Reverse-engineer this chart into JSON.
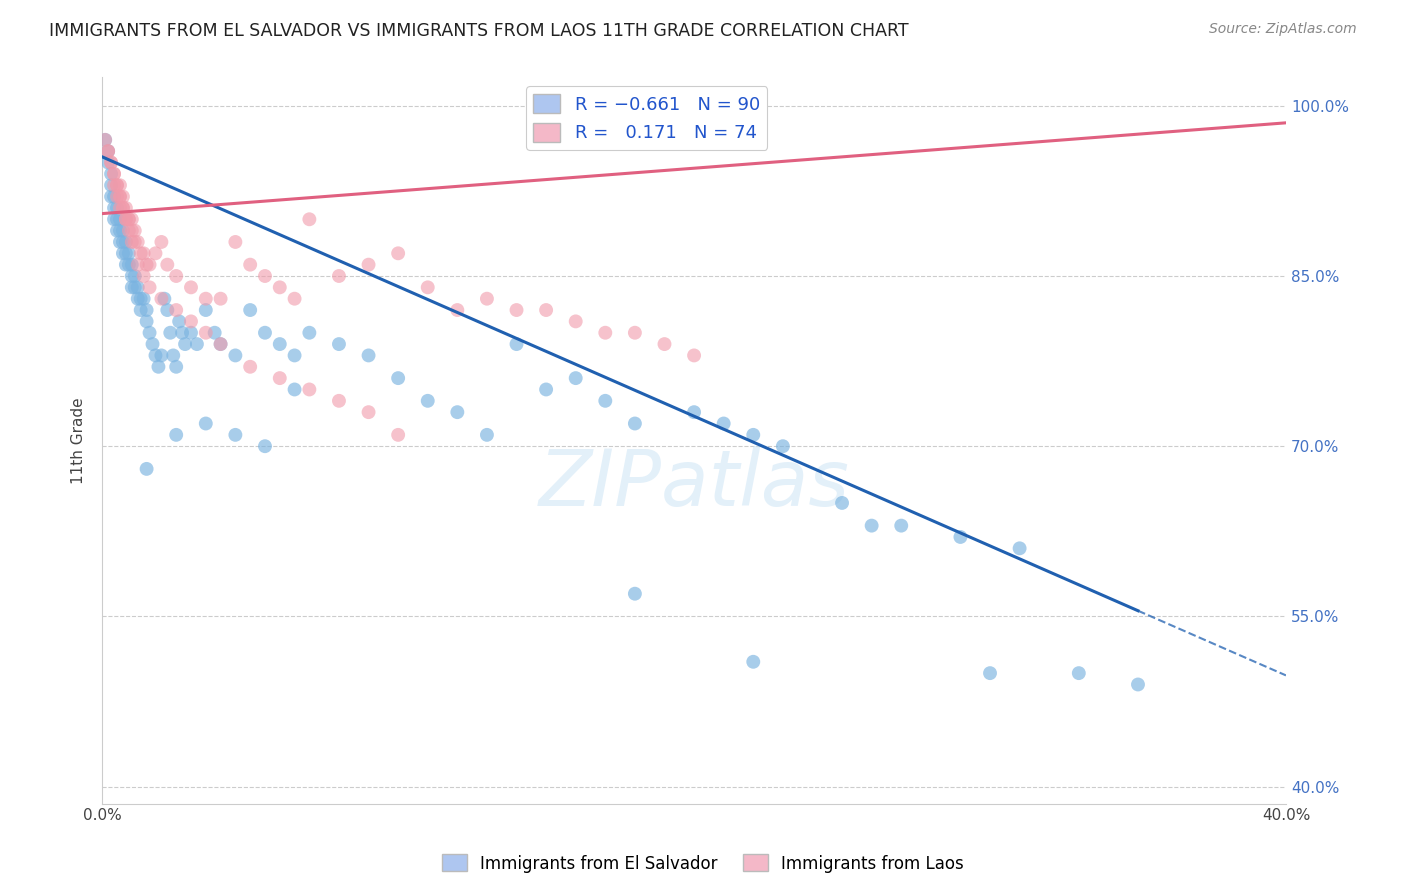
{
  "title": "IMMIGRANTS FROM EL SALVADOR VS IMMIGRANTS FROM LAOS 11TH GRADE CORRELATION CHART",
  "source": "Source: ZipAtlas.com",
  "ylabel": "11th Grade",
  "xlim": [
    0.0,
    0.4
  ],
  "ylim": [
    0.385,
    1.025
  ],
  "xtick_vals": [
    0.0,
    0.1,
    0.2,
    0.3,
    0.4
  ],
  "xtick_labels": [
    "0.0%",
    "",
    "",
    "",
    "40.0%"
  ],
  "ytick_labels_right": [
    "100.0%",
    "85.0%",
    "70.0%",
    "55.0%",
    "40.0%"
  ],
  "ytick_vals_right": [
    1.0,
    0.85,
    0.7,
    0.55,
    0.4
  ],
  "legend_label_blue": "Immigrants from El Salvador",
  "legend_label_pink": "Immigrants from Laos",
  "blue_fill_color": "#aec6f0",
  "pink_fill_color": "#f4b8c8",
  "blue_dot_color": "#7ab3e0",
  "pink_dot_color": "#f09aaa",
  "blue_line_color": "#2060b0",
  "pink_line_color": "#e06080",
  "watermark": "ZIPatlas",
  "blue_trend_x0": 0.0,
  "blue_trend_y0": 0.955,
  "blue_trend_x1": 0.35,
  "blue_trend_y1": 0.555,
  "blue_trend_dash_x1": 0.4,
  "blue_trend_dash_y1": 0.498,
  "pink_trend_x0": 0.0,
  "pink_trend_y0": 0.905,
  "pink_trend_x1": 0.4,
  "pink_trend_y1": 0.985,
  "blue_x": [
    0.001,
    0.002,
    0.002,
    0.003,
    0.003,
    0.003,
    0.004,
    0.004,
    0.004,
    0.005,
    0.005,
    0.005,
    0.006,
    0.006,
    0.006,
    0.007,
    0.007,
    0.007,
    0.008,
    0.008,
    0.008,
    0.009,
    0.009,
    0.01,
    0.01,
    0.01,
    0.011,
    0.011,
    0.012,
    0.012,
    0.013,
    0.013,
    0.014,
    0.015,
    0.015,
    0.016,
    0.017,
    0.018,
    0.019,
    0.02,
    0.021,
    0.022,
    0.023,
    0.024,
    0.025,
    0.026,
    0.027,
    0.028,
    0.03,
    0.032,
    0.035,
    0.038,
    0.04,
    0.045,
    0.05,
    0.055,
    0.06,
    0.065,
    0.07,
    0.08,
    0.09,
    0.1,
    0.11,
    0.12,
    0.13,
    0.14,
    0.15,
    0.16,
    0.17,
    0.18,
    0.2,
    0.21,
    0.22,
    0.23,
    0.25,
    0.27,
    0.29,
    0.31,
    0.33,
    0.35,
    0.015,
    0.025,
    0.035,
    0.045,
    0.055,
    0.065,
    0.18,
    0.22,
    0.26,
    0.3
  ],
  "blue_y": [
    0.97,
    0.96,
    0.95,
    0.94,
    0.93,
    0.92,
    0.92,
    0.91,
    0.9,
    0.91,
    0.9,
    0.89,
    0.9,
    0.89,
    0.88,
    0.89,
    0.88,
    0.87,
    0.88,
    0.87,
    0.86,
    0.87,
    0.86,
    0.86,
    0.85,
    0.84,
    0.85,
    0.84,
    0.84,
    0.83,
    0.83,
    0.82,
    0.83,
    0.82,
    0.81,
    0.8,
    0.79,
    0.78,
    0.77,
    0.78,
    0.83,
    0.82,
    0.8,
    0.78,
    0.77,
    0.81,
    0.8,
    0.79,
    0.8,
    0.79,
    0.82,
    0.8,
    0.79,
    0.78,
    0.82,
    0.8,
    0.79,
    0.78,
    0.8,
    0.79,
    0.78,
    0.76,
    0.74,
    0.73,
    0.71,
    0.79,
    0.75,
    0.76,
    0.74,
    0.72,
    0.73,
    0.72,
    0.71,
    0.7,
    0.65,
    0.63,
    0.62,
    0.61,
    0.5,
    0.49,
    0.68,
    0.71,
    0.72,
    0.71,
    0.7,
    0.75,
    0.57,
    0.51,
    0.63,
    0.5
  ],
  "pink_x": [
    0.001,
    0.002,
    0.002,
    0.003,
    0.003,
    0.004,
    0.004,
    0.005,
    0.005,
    0.006,
    0.006,
    0.006,
    0.007,
    0.007,
    0.008,
    0.008,
    0.009,
    0.009,
    0.01,
    0.01,
    0.011,
    0.011,
    0.012,
    0.013,
    0.014,
    0.015,
    0.016,
    0.018,
    0.02,
    0.022,
    0.025,
    0.03,
    0.035,
    0.04,
    0.045,
    0.05,
    0.055,
    0.06,
    0.065,
    0.07,
    0.08,
    0.09,
    0.1,
    0.11,
    0.12,
    0.13,
    0.14,
    0.15,
    0.16,
    0.17,
    0.18,
    0.19,
    0.2,
    0.004,
    0.005,
    0.006,
    0.007,
    0.008,
    0.009,
    0.01,
    0.012,
    0.014,
    0.016,
    0.02,
    0.025,
    0.03,
    0.035,
    0.04,
    0.05,
    0.06,
    0.07,
    0.08,
    0.09,
    0.1
  ],
  "pink_y": [
    0.97,
    0.96,
    0.96,
    0.95,
    0.95,
    0.94,
    0.94,
    0.93,
    0.93,
    0.93,
    0.92,
    0.92,
    0.92,
    0.91,
    0.91,
    0.9,
    0.9,
    0.9,
    0.9,
    0.89,
    0.89,
    0.88,
    0.88,
    0.87,
    0.87,
    0.86,
    0.86,
    0.87,
    0.88,
    0.86,
    0.85,
    0.84,
    0.83,
    0.83,
    0.88,
    0.86,
    0.85,
    0.84,
    0.83,
    0.9,
    0.85,
    0.86,
    0.87,
    0.84,
    0.82,
    0.83,
    0.82,
    0.82,
    0.81,
    0.8,
    0.8,
    0.79,
    0.78,
    0.93,
    0.92,
    0.91,
    0.91,
    0.9,
    0.89,
    0.88,
    0.86,
    0.85,
    0.84,
    0.83,
    0.82,
    0.81,
    0.8,
    0.79,
    0.77,
    0.76,
    0.75,
    0.74,
    0.73,
    0.71
  ]
}
